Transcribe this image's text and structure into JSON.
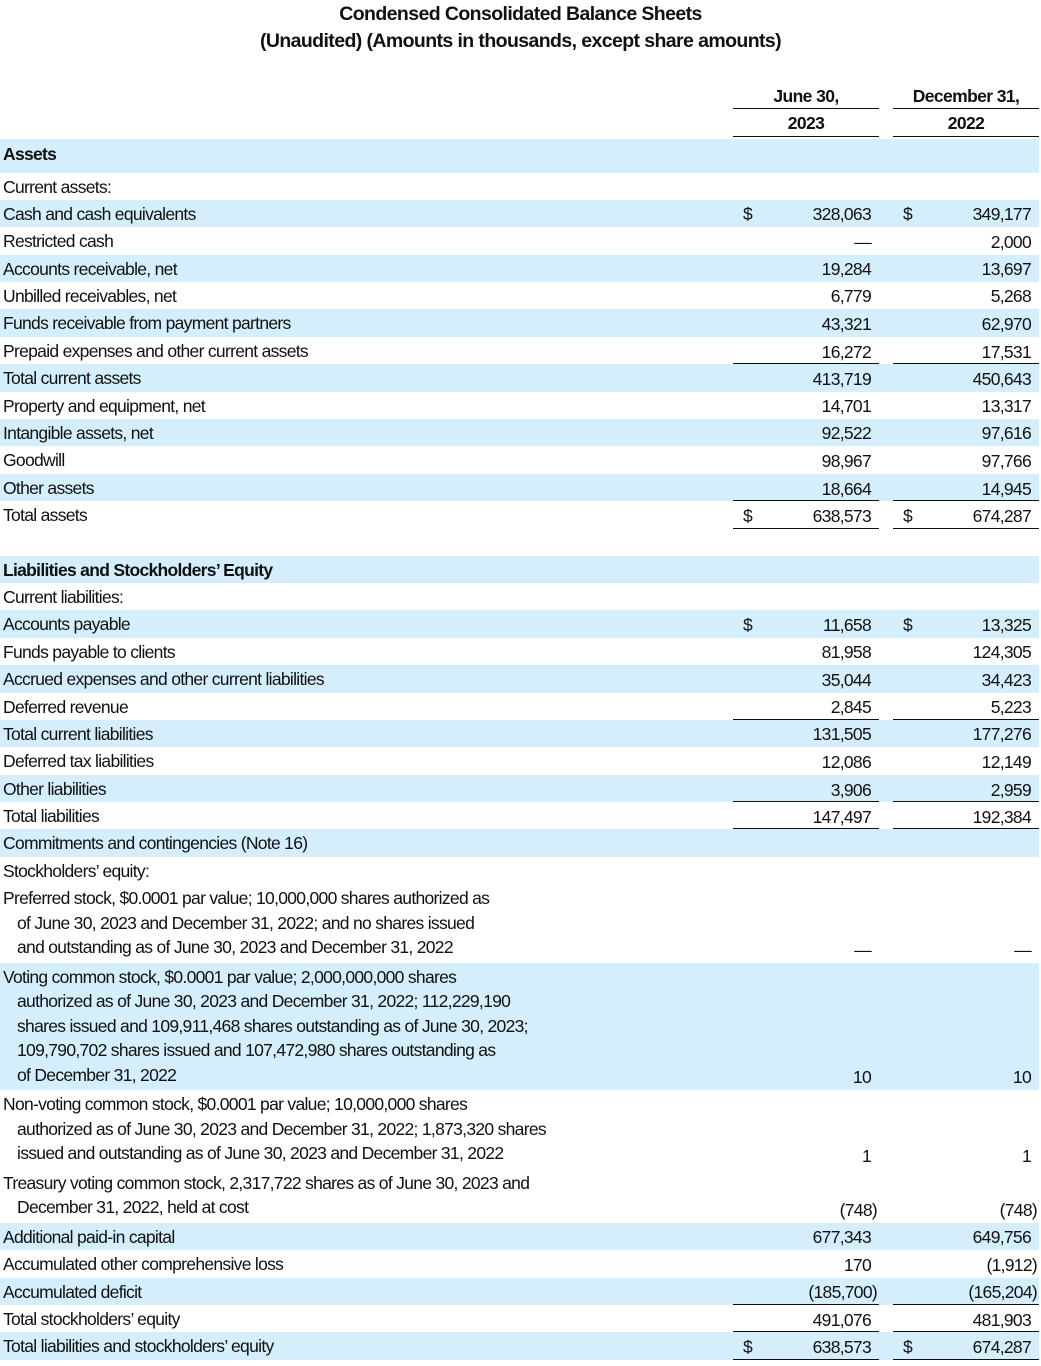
{
  "title": "Condensed Consolidated Balance Sheets",
  "subtitle": "(Unaudited) (Amounts in thousands, except share amounts)",
  "columns": [
    {
      "line1": "June 30,",
      "line2": "2023"
    },
    {
      "line1": "December 31,",
      "line2": "2022"
    }
  ],
  "colors": {
    "row_shade": "#d4effb"
  },
  "rows": [
    {
      "lines": [
        "Assets"
      ],
      "bold": true,
      "shade": true,
      "hdr": true
    },
    {
      "lines": [
        "Current assets:"
      ]
    },
    {
      "lines": [
        "Cash and cash equivalents"
      ],
      "shade": true,
      "v1": "328,063",
      "v2": "349,177",
      "dollar": true
    },
    {
      "lines": [
        "Restricted cash"
      ],
      "v1": "—",
      "v2": "2,000"
    },
    {
      "lines": [
        "Accounts receivable, net"
      ],
      "shade": true,
      "v1": "19,284",
      "v2": "13,697"
    },
    {
      "lines": [
        "Unbilled receivables, net"
      ],
      "v1": "6,779",
      "v2": "5,268"
    },
    {
      "lines": [
        "Funds receivable from payment partners"
      ],
      "shade": true,
      "v1": "43,321",
      "v2": "62,970"
    },
    {
      "lines": [
        "Prepaid expenses and other current assets"
      ],
      "v1": "16,272",
      "v2": "17,531",
      "rule": true
    },
    {
      "lines": [
        "Total current assets"
      ],
      "shade": true,
      "v1": "413,719",
      "v2": "450,643"
    },
    {
      "lines": [
        "Property and equipment, net"
      ],
      "v1": "14,701",
      "v2": "13,317"
    },
    {
      "lines": [
        "Intangible assets, net"
      ],
      "shade": true,
      "v1": "92,522",
      "v2": "97,616"
    },
    {
      "lines": [
        "Goodwill"
      ],
      "v1": "98,967",
      "v2": "97,766"
    },
    {
      "lines": [
        "Other assets"
      ],
      "shade": true,
      "v1": "18,664",
      "v2": "14,945",
      "rule": true
    },
    {
      "lines": [
        "Total assets"
      ],
      "v1": "638,573",
      "v2": "674,287",
      "dollar": true,
      "rule": true
    },
    {
      "blank": true
    },
    {
      "lines": [
        "Liabilities and Stockholders’ Equity"
      ],
      "bold": true,
      "shade": true
    },
    {
      "lines": [
        "Current liabilities:"
      ]
    },
    {
      "lines": [
        "Accounts payable"
      ],
      "shade": true,
      "v1": "11,658",
      "v2": "13,325",
      "dollar": true
    },
    {
      "lines": [
        "Funds payable to clients"
      ],
      "v1": "81,958",
      "v2": "124,305"
    },
    {
      "lines": [
        "Accrued expenses and other current liabilities"
      ],
      "shade": true,
      "v1": "35,044",
      "v2": "34,423"
    },
    {
      "lines": [
        "Deferred revenue"
      ],
      "v1": "2,845",
      "v2": "5,223",
      "rule": true
    },
    {
      "lines": [
        "Total current liabilities"
      ],
      "shade": true,
      "v1": "131,505",
      "v2": "177,276"
    },
    {
      "lines": [
        "Deferred tax liabilities"
      ],
      "v1": "12,086",
      "v2": "12,149"
    },
    {
      "lines": [
        "Other liabilities"
      ],
      "shade": true,
      "v1": "3,906",
      "v2": "2,959",
      "rule": true
    },
    {
      "lines": [
        "Total liabilities"
      ],
      "v1": "147,497",
      "v2": "192,384",
      "rule": true
    },
    {
      "lines": [
        "Commitments and contingencies (Note 16)"
      ],
      "shade": true
    },
    {
      "lines": [
        "Stockholders’ equity:"
      ]
    },
    {
      "lines": [
        "Preferred stock, $0.0001 par value; 10,000,000 shares authorized as",
        "of June 30, 2023 and December 31, 2022; and no shares issued",
        "and outstanding as of June 30, 2023 and December 31, 2022"
      ],
      "v1": "—",
      "v2": "—"
    },
    {
      "lines": [
        "Voting common stock, $0.0001 par value; 2,000,000,000 shares",
        "authorized as of June 30, 2023 and December 31, 2022; 112,229,190",
        "shares issued and 109,911,468 shares outstanding as of June 30, 2023;",
        "109,790,702 shares issued and 107,472,980 shares outstanding as",
        "of December 31, 2022"
      ],
      "shade": true,
      "v1": "10",
      "v2": "10"
    },
    {
      "lines": [
        "Non-voting common stock, $0.0001 par value; 10,000,000 shares",
        "authorized as of June 30, 2023 and December 31, 2022; 1,873,320 shares",
        "issued and outstanding as of June 30, 2023 and December 31, 2022"
      ],
      "v1": "1",
      "v2": "1"
    },
    {
      "lines": [
        "Treasury voting common stock, 2,317,722 shares as of June 30, 2023 and",
        "December 31, 2022, held at cost"
      ],
      "v1": "(748)",
      "v2": "(748)"
    },
    {
      "lines": [
        "Additional paid-in capital"
      ],
      "shade": true,
      "v1": "677,343",
      "v2": "649,756"
    },
    {
      "lines": [
        "Accumulated other comprehensive loss"
      ],
      "v1": "170",
      "v2": "(1,912)"
    },
    {
      "lines": [
        "Accumulated deficit"
      ],
      "shade": true,
      "v1": "(185,700)",
      "v2": "(165,204)",
      "rule": true
    },
    {
      "lines": [
        "Total stockholders’ equity"
      ],
      "v1": "491,076",
      "v2": "481,903",
      "rule": true
    },
    {
      "lines": [
        "Total liabilities and stockholders’ equity"
      ],
      "shade": true,
      "v1": "638,573",
      "v2": "674,287",
      "dollar": true,
      "rule": true
    }
  ],
  "currency_symbol": "$"
}
